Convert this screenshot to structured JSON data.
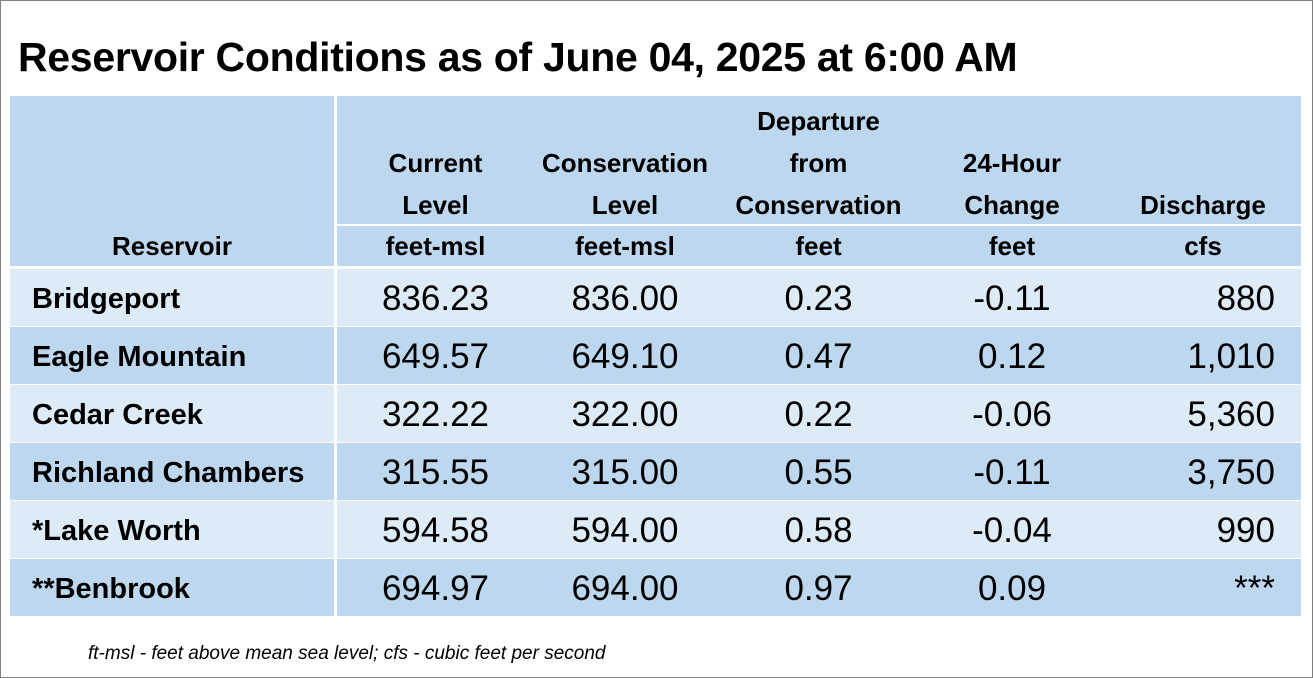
{
  "title": "Reservoir Conditions as of June 04, 2025 at 6:00 AM",
  "columns": [
    {
      "key": "reservoir",
      "lines": [
        "Reservoir"
      ],
      "unit": ""
    },
    {
      "key": "current",
      "lines": [
        "Current",
        "Level"
      ],
      "unit": "feet-msl"
    },
    {
      "key": "conservation",
      "lines": [
        "Conservation",
        "Level"
      ],
      "unit": "feet-msl"
    },
    {
      "key": "departure",
      "lines": [
        "Departure",
        "from",
        "Conservation"
      ],
      "unit": "feet"
    },
    {
      "key": "change",
      "lines": [
        "24-Hour",
        "Change"
      ],
      "unit": "feet"
    },
    {
      "key": "discharge",
      "lines": [
        "Discharge"
      ],
      "unit": "cfs"
    }
  ],
  "rows": [
    {
      "reservoir": "Bridgeport",
      "current": "836.23",
      "conservation": "836.00",
      "departure": "0.23",
      "change": "-0.11",
      "discharge": "880"
    },
    {
      "reservoir": "Eagle Mountain",
      "current": "649.57",
      "conservation": "649.10",
      "departure": "0.47",
      "change": "0.12",
      "discharge": "1,010"
    },
    {
      "reservoir": "Cedar Creek",
      "current": "322.22",
      "conservation": "322.00",
      "departure": "0.22",
      "change": "-0.06",
      "discharge": "5,360"
    },
    {
      "reservoir": "Richland Chambers",
      "current": "315.55",
      "conservation": "315.00",
      "departure": "0.55",
      "change": "-0.11",
      "discharge": "3,750"
    },
    {
      "reservoir": "*Lake Worth",
      "current": "594.58",
      "conservation": "594.00",
      "departure": "0.58",
      "change": "-0.04",
      "discharge": "990"
    },
    {
      "reservoir": "**Benbrook",
      "current": "694.97",
      "conservation": "694.00",
      "departure": "0.97",
      "change": "0.09",
      "discharge": "***"
    }
  ],
  "footnote": "ft-msl - feet above mean sea level; cfs - cubic feet per second",
  "colors": {
    "header_bg": "#bdd7ee",
    "row_light": "#ddebf7",
    "row_dark": "#bdd7ee"
  }
}
